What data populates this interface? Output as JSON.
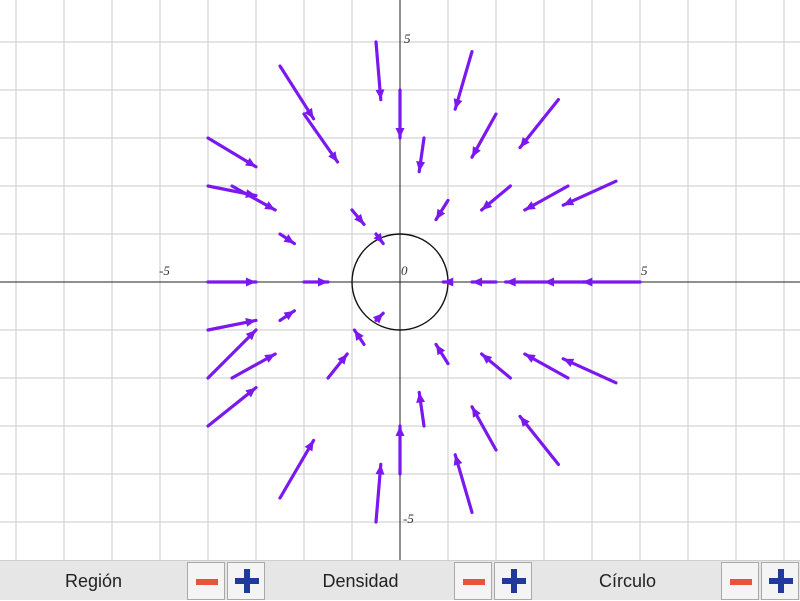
{
  "plot": {
    "x_range": [
      -8.33,
      8.33
    ],
    "y_range": [
      -5.83,
      5.83
    ],
    "grid_step": 1,
    "ticks": {
      "x_neg": "-5",
      "x_zero": "0",
      "x_pos": "5",
      "y_pos": "5",
      "y_neg": "-5"
    },
    "circle_radius": 1,
    "arrow_color": "#7b18f0",
    "field": "inward radial vector field (arrows point toward the origin)",
    "arrows": [
      [
        [
          -4.0,
          2.0
        ],
        [
          -3.0,
          1.8
        ]
      ],
      [
        [
          -4.0,
          -1.0
        ],
        [
          -3.0,
          -0.8
        ]
      ],
      [
        [
          -4.0,
          -2.0
        ],
        [
          -3.0,
          -1.0
        ]
      ],
      [
        [
          -4.0,
          -3.0
        ],
        [
          -3.0,
          -2.2
        ]
      ],
      [
        [
          -4.0,
          3.0
        ],
        [
          -3.0,
          2.4
        ]
      ],
      [
        [
          -3.5,
          2.0
        ],
        [
          -2.6,
          1.5
        ]
      ],
      [
        [
          -3.5,
          -2.0
        ],
        [
          -2.6,
          -1.5
        ]
      ],
      [
        [
          -2.5,
          1.0
        ],
        [
          -2.2,
          0.8
        ]
      ],
      [
        [
          -2.5,
          -0.8
        ],
        [
          -2.2,
          -0.6
        ]
      ],
      [
        [
          -4.0,
          0
        ],
        [
          -3.0,
          0
        ]
      ],
      [
        [
          -2.0,
          0
        ],
        [
          -1.5,
          0
        ]
      ],
      [
        [
          -2.5,
          4.5
        ],
        [
          -1.8,
          3.4
        ]
      ],
      [
        [
          -2.0,
          3.5
        ],
        [
          -1.3,
          2.5
        ]
      ],
      [
        [
          -1.0,
          1.5
        ],
        [
          -0.75,
          1.2
        ]
      ],
      [
        [
          -0.5,
          1.0
        ],
        [
          -0.35,
          0.8
        ]
      ],
      [
        [
          -0.5,
          -0.8
        ],
        [
          -0.35,
          -0.65
        ]
      ],
      [
        [
          -0.75,
          -1.3
        ],
        [
          -0.95,
          -1.0
        ]
      ],
      [
        [
          -1.5,
          -2.0
        ],
        [
          -1.1,
          -1.5
        ]
      ],
      [
        [
          -2.5,
          -4.5
        ],
        [
          -1.8,
          -3.3
        ]
      ],
      [
        [
          -0.5,
          5.0
        ],
        [
          -0.4,
          3.8
        ]
      ],
      [
        [
          0,
          4.0
        ],
        [
          0,
          3.0
        ]
      ],
      [
        [
          0.5,
          3.0
        ],
        [
          0.4,
          2.3
        ]
      ],
      [
        [
          1.0,
          1.7
        ],
        [
          0.75,
          1.3
        ]
      ],
      [
        [
          1.5,
          4.8
        ],
        [
          1.15,
          3.6
        ]
      ],
      [
        [
          2.0,
          3.5
        ],
        [
          1.5,
          2.6
        ]
      ],
      [
        [
          3.3,
          3.8
        ],
        [
          2.5,
          2.8
        ]
      ],
      [
        [
          2.3,
          2.0
        ],
        [
          1.7,
          1.5
        ]
      ],
      [
        [
          3.5,
          2.0
        ],
        [
          2.6,
          1.5
        ]
      ],
      [
        [
          4.5,
          2.1
        ],
        [
          3.4,
          1.6
        ]
      ],
      [
        [
          1.0,
          0
        ],
        [
          0.9,
          0
        ]
      ],
      [
        [
          2.0,
          0
        ],
        [
          1.5,
          0
        ]
      ],
      [
        [
          3.0,
          0
        ],
        [
          2.2,
          0
        ]
      ],
      [
        [
          4.0,
          0
        ],
        [
          3.0,
          0
        ]
      ],
      [
        [
          5.0,
          0
        ],
        [
          3.8,
          0
        ]
      ],
      [
        [
          1.0,
          -1.7
        ],
        [
          0.75,
          -1.3
        ]
      ],
      [
        [
          2.3,
          -2.0
        ],
        [
          1.7,
          -1.5
        ]
      ],
      [
        [
          3.5,
          -2.0
        ],
        [
          2.6,
          -1.5
        ]
      ],
      [
        [
          4.5,
          -2.1
        ],
        [
          3.4,
          -1.6
        ]
      ],
      [
        [
          2.0,
          -3.5
        ],
        [
          1.5,
          -2.6
        ]
      ],
      [
        [
          3.3,
          -3.8
        ],
        [
          2.5,
          -2.8
        ]
      ],
      [
        [
          0.5,
          -3.0
        ],
        [
          0.4,
          -2.3
        ]
      ],
      [
        [
          1.5,
          -4.8
        ],
        [
          1.15,
          -3.6
        ]
      ],
      [
        [
          0,
          -4.0
        ],
        [
          0,
          -3.0
        ]
      ],
      [
        [
          -0.5,
          -5.0
        ],
        [
          -0.4,
          -3.8
        ]
      ]
    ]
  },
  "controls": [
    {
      "label": "Región",
      "minus_color": "#e8533a",
      "plus_color": "#1f3a9a"
    },
    {
      "label": "Densidad",
      "minus_color": "#e8533a",
      "plus_color": "#1f3a9a"
    },
    {
      "label": "Círculo",
      "minus_color": "#e8533a",
      "plus_color": "#1f3a9a"
    }
  ]
}
